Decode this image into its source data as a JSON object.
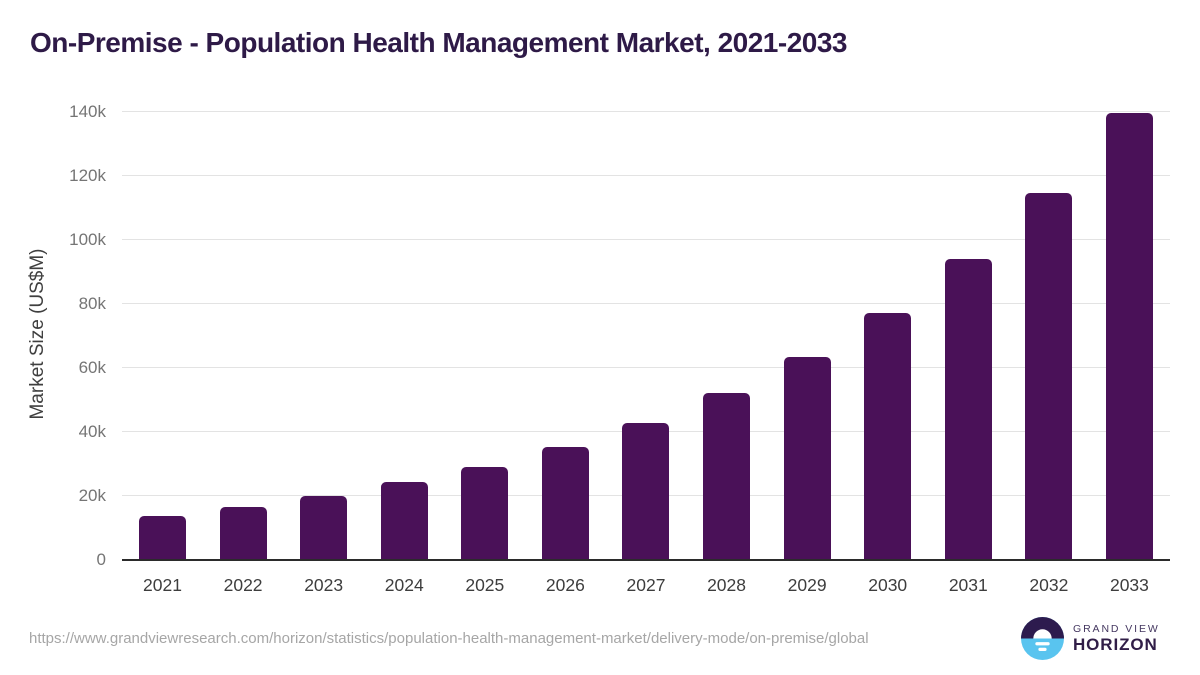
{
  "title": "On-Premise - Population Health Management Market, 2021-2033",
  "chart_data": {
    "type": "bar",
    "title": "On-Premise - Population Health Management Market, 2021-2033",
    "categories": [
      "2021",
      "2022",
      "2023",
      "2024",
      "2025",
      "2026",
      "2027",
      "2028",
      "2029",
      "2030",
      "2031",
      "2032",
      "2033"
    ],
    "values": [
      13400,
      16200,
      19700,
      24000,
      28800,
      35000,
      42600,
      52000,
      63200,
      76900,
      93900,
      114300,
      139400
    ],
    "xlabel": "",
    "ylabel": "Market Size (US$M)",
    "ylim": [
      0,
      140000
    ],
    "ytick_labels": [
      "0",
      "20k",
      "40k",
      "60k",
      "80k",
      "100k",
      "120k",
      "140k"
    ],
    "grid": "horizontal",
    "legend": "none",
    "bar_color": "#4a1158",
    "unit": "US$M"
  },
  "footer": {
    "source_url": "https://www.grandviewresearch.com/horizon/statistics/population-health-management-market/delivery-mode/on-premise/global",
    "logo": {
      "line1": "GRAND VIEW",
      "line2": "HORIZON"
    }
  },
  "colors": {
    "bar": "#4a1158",
    "title_text": "#2e1a47",
    "gridline": "#e3e3e3",
    "axis_line": "#2b2b2b",
    "y_tick_text": "#757575",
    "x_tick_text": "#3d3d3d",
    "url_text": "#a6a6a6",
    "logo_dark": "#2d1b4e",
    "logo_blue": "#59c4ef"
  }
}
